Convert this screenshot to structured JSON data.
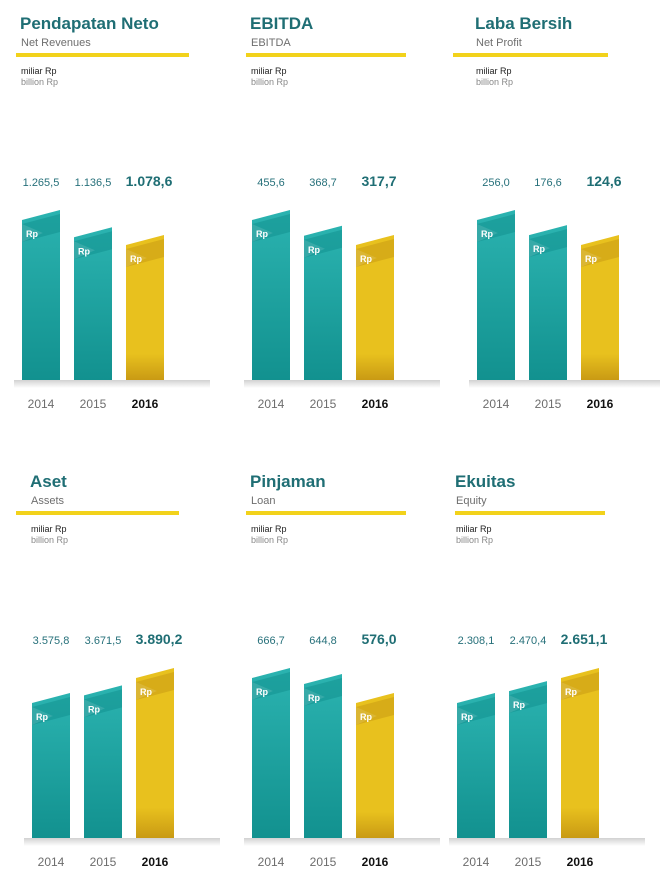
{
  "colors": {
    "teal": "#2bb3b0",
    "teal_dark": "#12918f",
    "gold": "#e8c11e",
    "gold_dark": "#c99a14",
    "title": "#1f6e74",
    "rule": "#f2d21b"
  },
  "bar_label": "Rp",
  "chart_data": [
    {
      "type": "bar",
      "title": "Pendapatan Neto",
      "subtitle": "Net Revenues",
      "unit_id": "miliar Rp",
      "unit_en": "billion Rp",
      "categories": [
        "2014",
        "2015",
        "2016"
      ],
      "values": [
        1265.5,
        1136.5,
        1078.6
      ],
      "value_labels": [
        "1.265,5",
        "1.136,5",
        "1.078,6"
      ]
    },
    {
      "type": "bar",
      "title": "EBITDA",
      "subtitle": "EBITDA",
      "unit_id": "miliar Rp",
      "unit_en": "billion Rp",
      "categories": [
        "2014",
        "2015",
        "2016"
      ],
      "values": [
        455.6,
        368.7,
        317.7
      ],
      "value_labels": [
        "455,6",
        "368,7",
        "317,7"
      ]
    },
    {
      "type": "bar",
      "title": "Laba Bersih",
      "subtitle": "Net Profit",
      "unit_id": "miliar Rp",
      "unit_en": "billion Rp",
      "categories": [
        "2014",
        "2015",
        "2016"
      ],
      "values": [
        256.0,
        176.6,
        124.6
      ],
      "value_labels": [
        "256,0",
        "176,6",
        "124,6"
      ]
    },
    {
      "type": "bar",
      "title": "Aset",
      "subtitle": "Assets",
      "unit_id": "miliar Rp",
      "unit_en": "billion Rp",
      "categories": [
        "2014",
        "2015",
        "2016"
      ],
      "values": [
        3575.8,
        3671.5,
        3890.2
      ],
      "value_labels": [
        "3.575,8",
        "3.671,5",
        "3.890,2"
      ]
    },
    {
      "type": "bar",
      "title": "Pinjaman",
      "subtitle": "Loan",
      "unit_id": "miliar Rp",
      "unit_en": "billion Rp",
      "categories": [
        "2014",
        "2015",
        "2016"
      ],
      "values": [
        666.7,
        644.8,
        576.0
      ],
      "value_labels": [
        "666,7",
        "644,8",
        "576,0"
      ]
    },
    {
      "type": "bar",
      "title": "Ekuitas",
      "subtitle": "Equity",
      "unit_id": "miliar Rp",
      "unit_en": "billion Rp",
      "categories": [
        "2014",
        "2015",
        "2016"
      ],
      "values": [
        2308.1,
        2470.4,
        2651.1
      ],
      "value_labels": [
        "2.308,1",
        "2.470,4",
        "2.651,1"
      ]
    }
  ]
}
